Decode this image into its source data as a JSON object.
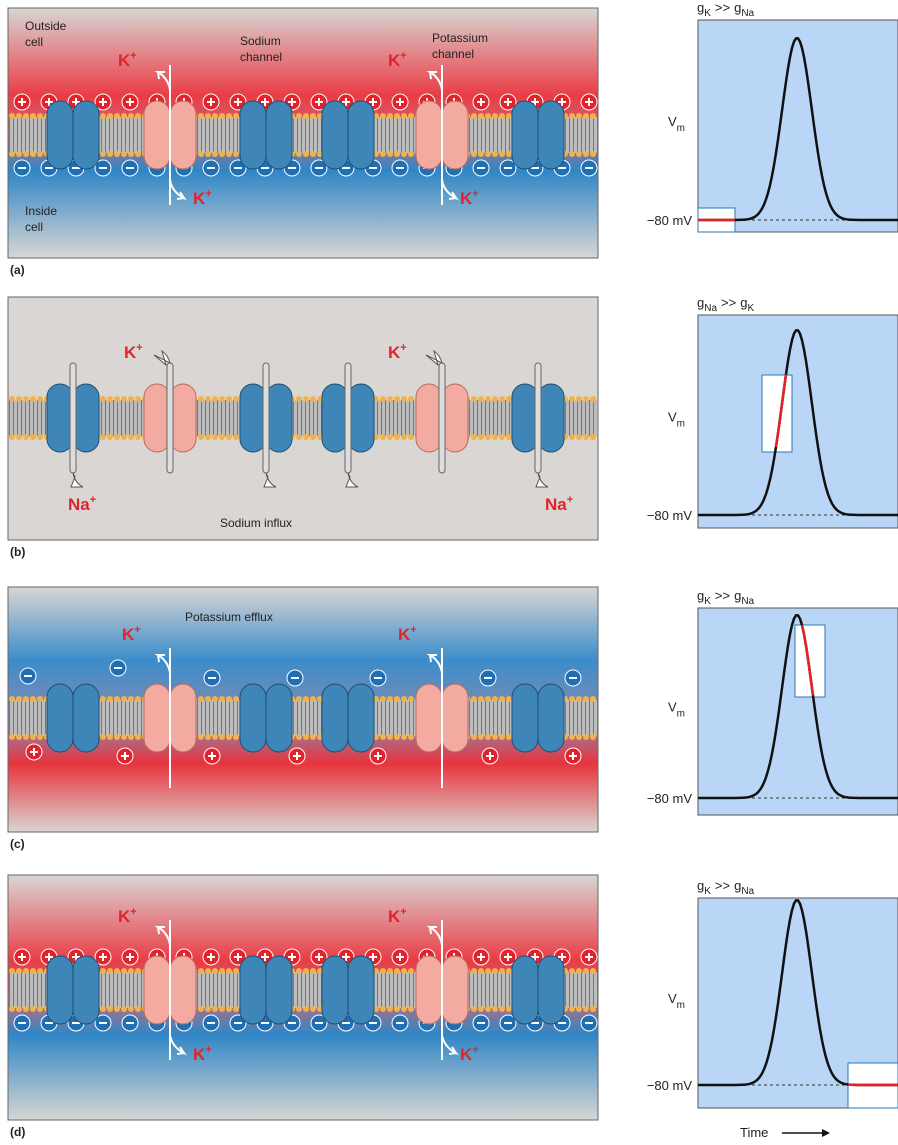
{
  "panels": [
    {
      "label": "(a)",
      "notes": [
        [
          "Outside",
          "cell"
        ],
        [
          "Sodium",
          "channel"
        ],
        [
          "Potassium",
          "channel"
        ],
        [
          "Inside",
          "cell"
        ]
      ],
      "ions": [
        {
          "symbol": "K",
          "charge": "+"
        },
        {
          "symbol": "K",
          "charge": "+"
        },
        {
          "symbol": "K",
          "charge": "+"
        },
        {
          "symbol": "K",
          "charge": "+"
        }
      ],
      "graph": {
        "conductance": {
          "left": "g",
          "left_sub": "K",
          "op": ">>",
          "right": "g",
          "right_sub": "Na"
        },
        "y_label": {
          "base": "V",
          "sub": "m"
        },
        "baseline": "−80 mV"
      }
    },
    {
      "label": "(b)",
      "notes": [
        [
          "Sodium influx"
        ]
      ],
      "ions": [
        {
          "symbol": "K",
          "charge": "+"
        },
        {
          "symbol": "K",
          "charge": "+"
        },
        {
          "symbol": "Na",
          "charge": "+"
        },
        {
          "symbol": "Na",
          "charge": "+"
        }
      ],
      "graph": {
        "conductance": {
          "left": "g",
          "left_sub": "Na",
          "op": ">>",
          "right": "g",
          "right_sub": "K"
        },
        "y_label": {
          "base": "V",
          "sub": "m"
        },
        "baseline": "−80 mV"
      }
    },
    {
      "label": "(c)",
      "notes": [
        [
          "Potassium efflux"
        ]
      ],
      "ions": [
        {
          "symbol": "K",
          "charge": "+"
        },
        {
          "symbol": "K",
          "charge": "+"
        }
      ],
      "graph": {
        "conductance": {
          "left": "g",
          "left_sub": "K",
          "op": ">>",
          "right": "g",
          "right_sub": "Na"
        },
        "y_label": {
          "base": "V",
          "sub": "m"
        },
        "baseline": "−80 mV"
      }
    },
    {
      "label": "(d)",
      "notes": [],
      "ions": [
        {
          "symbol": "K",
          "charge": "+"
        },
        {
          "symbol": "K",
          "charge": "+"
        },
        {
          "symbol": "K",
          "charge": "+"
        },
        {
          "symbol": "K",
          "charge": "+"
        }
      ],
      "graph": {
        "conductance": {
          "left": "g",
          "left_sub": "K",
          "op": ">>",
          "right": "g",
          "right_sub": "Na"
        },
        "y_label": {
          "base": "V",
          "sub": "m"
        },
        "baseline": "−80 mV"
      }
    }
  ],
  "time_label": "Time"
}
